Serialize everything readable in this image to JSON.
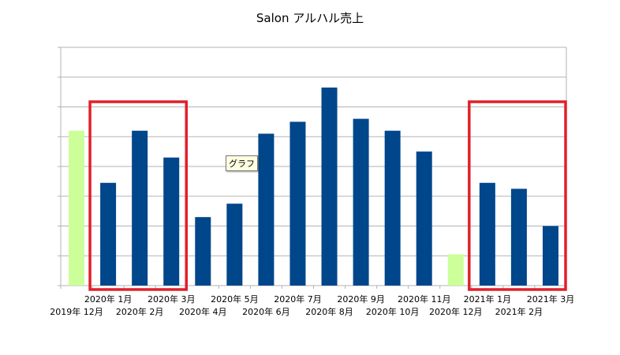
{
  "chart_data": {
    "type": "bar",
    "title": "Salon アルハル売上",
    "xlabel": "",
    "ylabel": "",
    "categories": [
      "2019年 12月",
      "2020年 1月",
      "2020年 2月",
      "2020年 3月",
      "2020年 4月",
      "2020年 5月",
      "2020年 6月",
      "2020年 7月",
      "2020年 8月",
      "2020年 9月",
      "2020年 10月",
      "2020年 11月",
      "2020年 12月",
      "2021年 1月",
      "2021年 2月",
      "2021年 3月"
    ],
    "values": [
      5.2,
      3.45,
      5.2,
      4.3,
      2.3,
      2.75,
      5.1,
      5.5,
      6.65,
      5.6,
      5.2,
      4.5,
      1.05,
      3.45,
      3.25,
      2.0
    ],
    "highlighted": [
      true,
      false,
      false,
      false,
      false,
      false,
      false,
      false,
      false,
      false,
      false,
      false,
      true,
      false,
      false,
      false
    ],
    "ylim": [
      0,
      8
    ],
    "grid": true,
    "colors": {
      "bar": "#00468b",
      "highlight_bar": "#ccff99",
      "grid": "#b3b3b3",
      "box": "#e0202a"
    }
  },
  "tooltip": {
    "text": "グラフ"
  }
}
